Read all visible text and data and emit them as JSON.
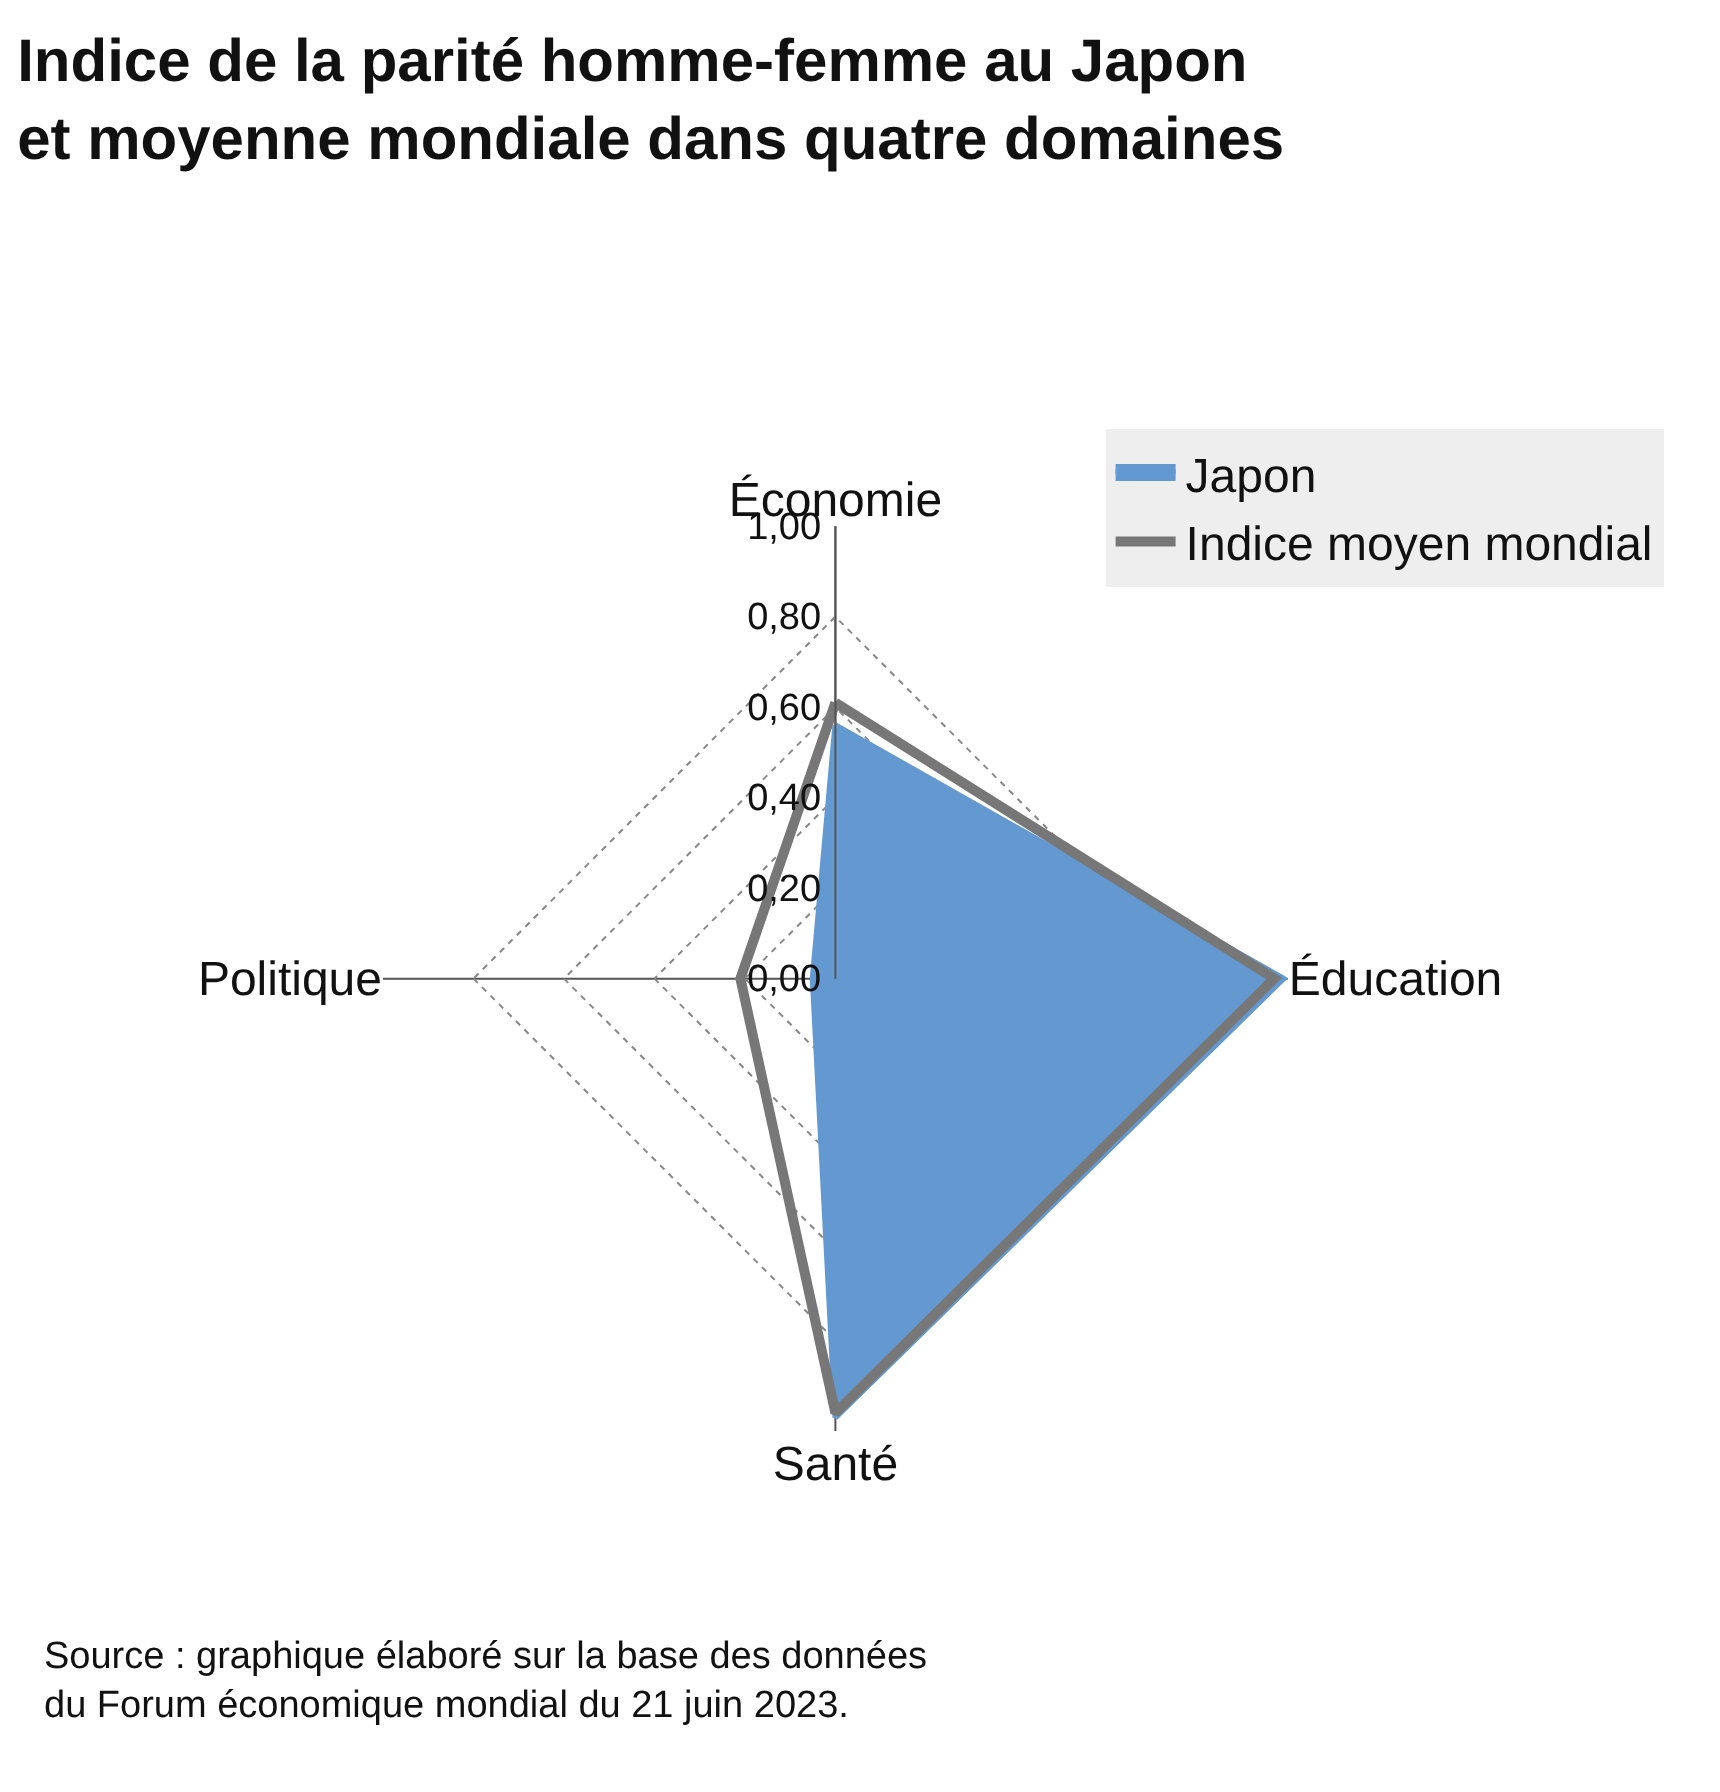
{
  "chart_data": {
    "type": "radar",
    "title": "Indice de la parité homme-femme au Japon\net moyenne mondiale dans quatre domaines",
    "categories": [
      "Économie",
      "Éducation",
      "Santé",
      "Politique"
    ],
    "series": [
      {
        "name": "Japon",
        "color": "#6399d0",
        "values": [
          0.56,
          0.99,
          0.97,
          0.05
        ]
      },
      {
        "name": "Indice moyen mondial",
        "color": "#777777",
        "values": [
          0.61,
          0.97,
          0.96,
          0.21
        ]
      }
    ],
    "ylim": [
      0,
      1
    ],
    "yticks": [
      {
        "value": 0,
        "label": "0,00"
      },
      {
        "value": 0.2,
        "label": "0,20"
      },
      {
        "value": 0.4,
        "label": "0,40"
      },
      {
        "value": 0.6,
        "label": "0,60"
      },
      {
        "value": 0.8,
        "label": "0,80"
      },
      {
        "value": 1,
        "label": "1,00"
      }
    ],
    "grid": true,
    "legend": "top right",
    "annotations": [
      "Source : graphique élaboré sur la base des données du Forum économique mondial du 21 juin 2023."
    ]
  }
}
